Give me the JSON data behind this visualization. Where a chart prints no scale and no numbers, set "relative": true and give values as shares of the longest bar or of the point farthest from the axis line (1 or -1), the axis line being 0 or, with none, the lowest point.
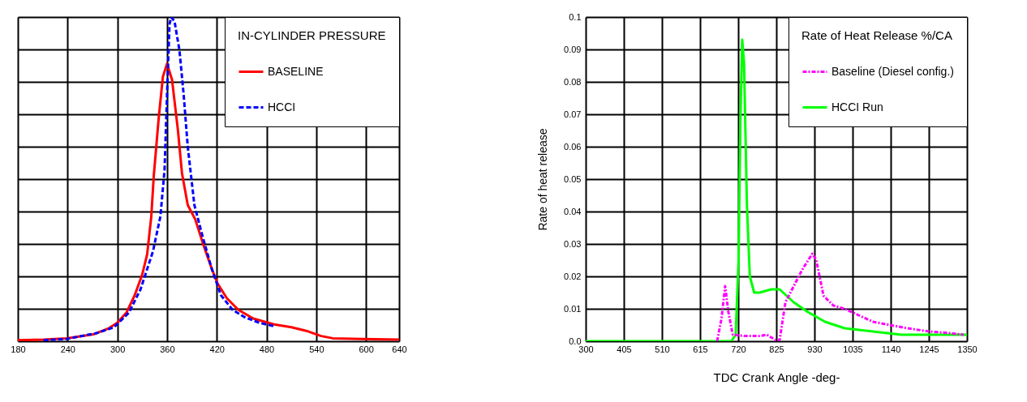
{
  "chart_data": [
    {
      "type": "line",
      "relative": true,
      "legend_title": "IN-CYLINDER PRESSURE",
      "legend": "top right",
      "grid": true,
      "tick_labels": "x",
      "xlim": [
        180,
        640
      ],
      "xticks": [
        180,
        240,
        300,
        360,
        420,
        480,
        540,
        600,
        640
      ],
      "series": [
        {
          "name": "BASELINE",
          "color": "#ff0000",
          "line_style": "solid",
          "x": [
            180,
            211,
            239,
            271,
            289,
            300,
            311,
            321,
            330,
            336,
            341,
            344,
            350,
            355,
            360,
            366,
            373,
            378,
            385,
            394,
            403,
            414,
            421,
            432,
            446,
            464,
            489,
            510,
            528,
            546,
            560,
            595,
            640
          ],
          "values": [
            0.003,
            0.005,
            0.009,
            0.021,
            0.039,
            0.057,
            0.088,
            0.142,
            0.205,
            0.268,
            0.385,
            0.51,
            0.69,
            0.816,
            0.856,
            0.807,
            0.654,
            0.519,
            0.42,
            0.376,
            0.304,
            0.223,
            0.178,
            0.133,
            0.097,
            0.07,
            0.052,
            0.043,
            0.032,
            0.016,
            0.009,
            0.007,
            0.005
          ]
        },
        {
          "name": "HCCI",
          "color": "#0000ff",
          "line_style": "dashed",
          "x": [
            211,
            239,
            275,
            296,
            314,
            328,
            343,
            352,
            357,
            360,
            363,
            365,
            369,
            375,
            380,
            385,
            393,
            403,
            414,
            425,
            439,
            453,
            471,
            490
          ],
          "values": [
            0.003,
            0.007,
            0.025,
            0.043,
            0.088,
            0.16,
            0.277,
            0.385,
            0.528,
            0.762,
            0.978,
            1,
            0.987,
            0.897,
            0.762,
            0.6,
            0.42,
            0.322,
            0.223,
            0.142,
            0.097,
            0.075,
            0.057,
            0.046
          ]
        }
      ]
    },
    {
      "type": "line",
      "legend_title": "Rate of Heat Release %/CA",
      "legend": "top right",
      "grid": true,
      "xlabel": "TDC  Crank Angle -deg-",
      "ylabel": "Rate of heat release",
      "xlim": [
        300,
        1350
      ],
      "xticks": [
        300,
        405,
        510,
        615,
        720,
        825,
        930,
        1035,
        1140,
        1245,
        1350
      ],
      "ylim": [
        0,
        0.1
      ],
      "yticks": [
        {
          "value": 0,
          "label": "0.0"
        },
        0.01,
        0.02,
        0.03,
        0.04,
        0.05,
        0.06,
        0.07,
        0.08,
        0.09,
        0.1
      ],
      "series": [
        {
          "name": "Baseline (Diesel config.)",
          "color": "#ff00ff",
          "line_style": "dashdot",
          "x": [
            662,
            674,
            684,
            693,
            705,
            740,
            779,
            799,
            822,
            834,
            850,
            873,
            896,
            924,
            935,
            955,
            982,
            1013,
            1052,
            1091,
            1138,
            1185,
            1247,
            1302,
            1341
          ],
          "values": [
            0,
            0.007,
            0.017,
            0.009,
            0.002,
            0.0016,
            0.0016,
            0.002,
            0.0004,
            0.0003,
            0.012,
            0.017,
            0.022,
            0.027,
            0.025,
            0.014,
            0.011,
            0.01,
            0.008,
            0.006,
            0.005,
            0.004,
            0.003,
            0.0025,
            0.002
          ]
        },
        {
          "name": "HCCI Run",
          "color": "#00ff00",
          "line_style": "solid",
          "x": [
            300,
            701,
            713,
            721,
            726,
            731,
            736,
            744,
            752,
            764,
            779,
            811,
            834,
            873,
            912,
            959,
            1013,
            1091,
            1169,
            1350
          ],
          "values": [
            0,
            0,
            0.002,
            0.025,
            0.068,
            0.093,
            0.086,
            0.042,
            0.02,
            0.015,
            0.015,
            0.016,
            0.016,
            0.012,
            0.009,
            0.006,
            0.004,
            0.003,
            0.002,
            0.002
          ]
        }
      ]
    }
  ]
}
